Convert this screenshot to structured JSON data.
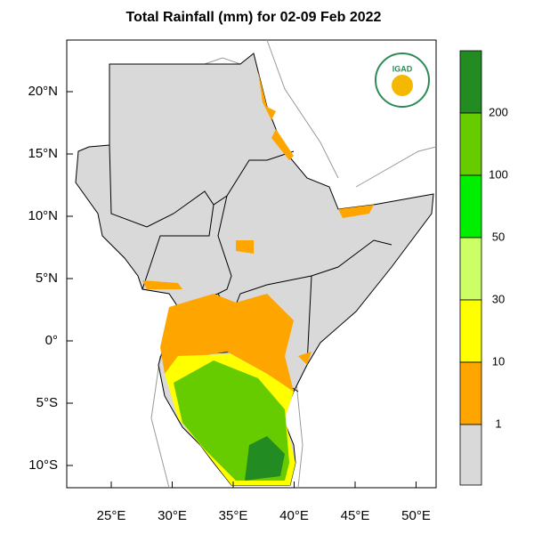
{
  "title": "Total Rainfall (mm) for 02-09 Feb 2022",
  "logo_text": "IGAD",
  "lon_labels": [
    "25°E",
    "30°E",
    "35°E",
    "40°E",
    "45°E",
    "50°E"
  ],
  "lat_labels": [
    "20°N",
    "15°N",
    "10°N",
    "5°N",
    "0°",
    "5°S",
    "10°S"
  ],
  "colorbar": {
    "colors": [
      "#228b22",
      "#66cc00",
      "#00ee00",
      "#ccff66",
      "#ffff00",
      "#ffa500",
      "#d9d9d9"
    ],
    "labels": [
      200,
      100,
      50,
      30,
      10,
      1
    ]
  }
}
